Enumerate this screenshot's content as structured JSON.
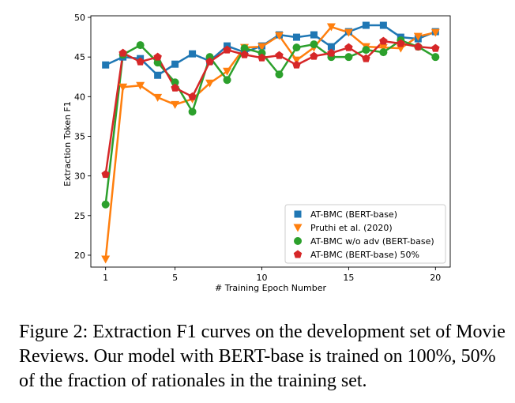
{
  "chart_data": {
    "type": "line",
    "xlabel": "# Training Epoch Number",
    "ylabel": "Extraction Token F1",
    "xlim": [
      0.15,
      20.85
    ],
    "ylim": [
      18.5,
      50.2
    ],
    "xticks": [
      1,
      5,
      10,
      15,
      20
    ],
    "yticks": [
      20,
      25,
      30,
      35,
      40,
      45,
      50
    ],
    "grid": false,
    "legend_position": "lower-right",
    "x": [
      1,
      2,
      3,
      4,
      5,
      6,
      7,
      8,
      9,
      10,
      11,
      12,
      13,
      14,
      15,
      16,
      17,
      18,
      19,
      20
    ],
    "series": [
      {
        "name": "AT-BMC (BERT-base)",
        "color": "#1f77b4",
        "marker": "square",
        "values": [
          44.0,
          45.0,
          44.8,
          42.7,
          44.1,
          45.4,
          44.5,
          46.4,
          45.6,
          46.4,
          47.8,
          47.5,
          47.8,
          46.3,
          48.2,
          49.0,
          49.0,
          47.5,
          47.3,
          48.2
        ]
      },
      {
        "name": "Pruthi et al. (2020)",
        "color": "#ff7f0e",
        "marker": "triangle-down",
        "values": [
          19.5,
          41.2,
          41.4,
          39.9,
          39.0,
          39.7,
          41.7,
          43.2,
          46.2,
          46.3,
          47.7,
          44.6,
          46.2,
          48.8,
          48.1,
          46.3,
          46.2,
          46.1,
          47.6,
          48.1
        ]
      },
      {
        "name": "AT-BMC w/o adv (BERT-base)",
        "color": "#2ca02c",
        "marker": "circle",
        "values": [
          26.4,
          45.3,
          46.5,
          44.3,
          41.8,
          38.1,
          45.0,
          42.1,
          46.1,
          45.5,
          42.8,
          46.2,
          46.6,
          45.0,
          45.0,
          45.9,
          45.6,
          47.1,
          46.3,
          45.0
        ]
      },
      {
        "name": "AT-BMC (BERT-base) 50%",
        "color": "#d62728",
        "marker": "pentagon",
        "values": [
          30.2,
          45.5,
          44.4,
          45.0,
          41.1,
          40.0,
          44.4,
          45.9,
          45.3,
          44.9,
          45.2,
          44.0,
          45.1,
          45.5,
          46.2,
          44.8,
          47.0,
          46.7,
          46.3,
          46.1
        ]
      }
    ]
  },
  "caption": "Figure 2: Extraction F1 curves on the development set of Movie Reviews. Our model with BERT-base is trained on 100%, 50% of the fraction of rationales in the training set."
}
